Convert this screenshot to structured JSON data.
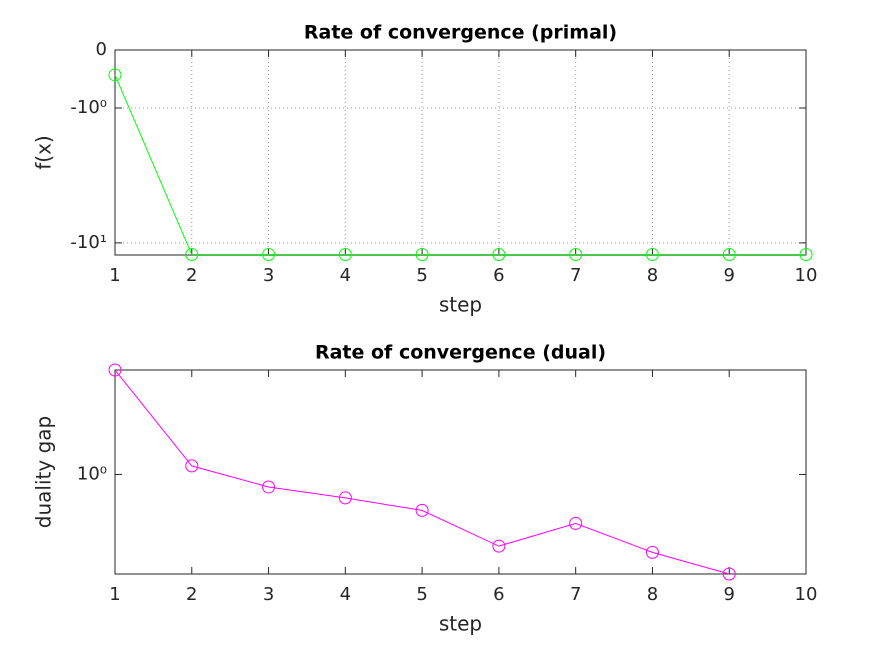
{
  "chart_data": [
    {
      "type": "line",
      "title": "Rate of convergence (primal)",
      "xlabel": "step",
      "ylabel": "f(x)",
      "x": [
        1,
        2,
        3,
        4,
        5,
        6,
        7,
        8,
        9,
        10
      ],
      "series": [
        {
          "name": "primal",
          "color": "#00ff00",
          "values": [
            -0.43,
            -12.2,
            -12.2,
            -12.2,
            -12.2,
            -12.2,
            -12.2,
            -12.2,
            -12.2,
            -12.2
          ]
        }
      ],
      "xlim": [
        1,
        10
      ],
      "xticks": [
        1,
        2,
        3,
        4,
        5,
        6,
        7,
        8,
        9,
        10
      ],
      "yscale": "symlog",
      "linthresh": 1,
      "linscale": 0.43,
      "ylim": [
        -12.3,
        0
      ],
      "yticks": [
        0,
        {
          "value": -1,
          "label": "-10⁰"
        },
        {
          "value": -10,
          "label": "-10¹"
        }
      ],
      "grid": true
    },
    {
      "type": "line",
      "title": "Rate of convergence (dual)",
      "xlabel": "step",
      "ylabel": "duality gap",
      "x": [
        1,
        2,
        3,
        4,
        5,
        6,
        7,
        8,
        9
      ],
      "series": [
        {
          "name": "dual",
          "color": "#ff00ff",
          "values": [
            3.2,
            1.1,
            0.87,
            0.77,
            0.67,
            0.45,
            0.58,
            0.42,
            0.33
          ]
        }
      ],
      "xlim": [
        1,
        10
      ],
      "xticks": [
        1,
        2,
        3,
        4,
        5,
        6,
        7,
        8,
        9,
        10
      ],
      "yscale": "log",
      "ylim": [
        0.33,
        3.2
      ],
      "yticks": [
        {
          "value": 1,
          "label": "10⁰"
        }
      ],
      "grid": false
    }
  ]
}
